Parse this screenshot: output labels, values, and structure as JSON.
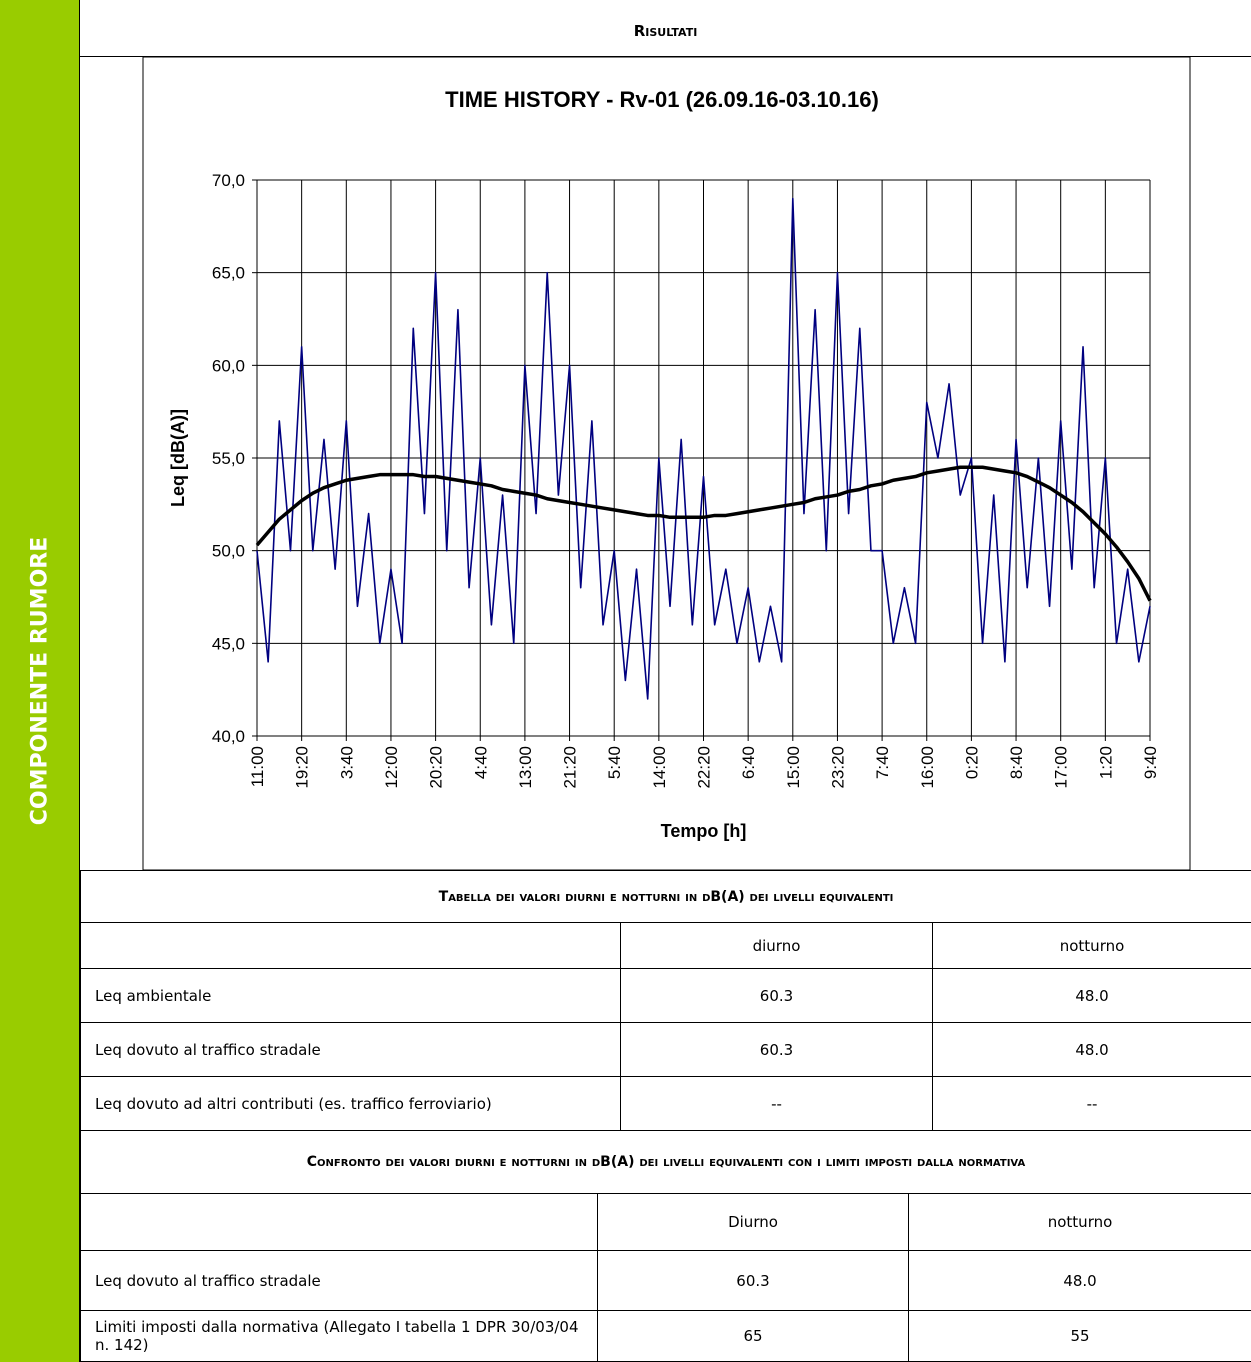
{
  "sidebar": "COMPONENTE RUMORE",
  "header": {
    "title": "Risultati"
  },
  "chart_data": {
    "type": "line",
    "title": "TIME HISTORY  - Rv-01 (26.09.16-03.10.16)",
    "x_label": "Tempo [h]",
    "y_label": "Leq [dB(A)]",
    "ylim": [
      40,
      70
    ],
    "yticks": [
      {
        "value": 40,
        "label": "40,0"
      },
      {
        "value": 45,
        "label": "45,0"
      },
      {
        "value": 50,
        "label": "50,0"
      },
      {
        "value": 55,
        "label": "55,0"
      },
      {
        "value": 60,
        "label": "60,0"
      },
      {
        "value": 65,
        "label": "65,0"
      },
      {
        "value": 70,
        "label": "70,0"
      }
    ],
    "grid": true,
    "categories": [
      "11:00",
      null,
      null,
      null,
      "19:20",
      null,
      null,
      null,
      "3:40",
      null,
      null,
      null,
      "12:00",
      null,
      null,
      null,
      "20:20",
      null,
      null,
      null,
      "4:40",
      null,
      null,
      null,
      "13:00",
      null,
      null,
      null,
      "21:20",
      null,
      null,
      null,
      "5:40",
      null,
      null,
      null,
      "14:00",
      null,
      null,
      null,
      "22:20",
      null,
      null,
      null,
      "6:40",
      null,
      null,
      null,
      "15:00",
      null,
      null,
      null,
      "23:20",
      null,
      null,
      null,
      "7:40",
      null,
      null,
      null,
      "16:00",
      null,
      null,
      null,
      "0:20",
      null,
      null,
      null,
      "8:40",
      null,
      null,
      null,
      "17:00",
      null,
      null,
      null,
      "1:20",
      null,
      null,
      null,
      "9:40"
    ],
    "series": [
      {
        "color": "#000080",
        "values": [
          50,
          44,
          57,
          50,
          61,
          50,
          56,
          49,
          57,
          47,
          52,
          45,
          49,
          45,
          62,
          52,
          65,
          50,
          63,
          48,
          55,
          46,
          53,
          45,
          60,
          52,
          65,
          53,
          60,
          48,
          57,
          46,
          50,
          43,
          49,
          42,
          55,
          47,
          56,
          46,
          54,
          46,
          49,
          45,
          48,
          44,
          47,
          44,
          69,
          52,
          63,
          50,
          65,
          52,
          62,
          50,
          50,
          45,
          48,
          45,
          58,
          55,
          59,
          53,
          55,
          45,
          53,
          44,
          56,
          48,
          55,
          47,
          57,
          49,
          61,
          48,
          55,
          45,
          49,
          44,
          47
        ]
      },
      {
        "color": "#000000",
        "values": [
          50.3,
          51.0,
          51.7,
          52.2,
          52.7,
          53.1,
          53.4,
          53.6,
          53.8,
          53.9,
          54.0,
          54.1,
          54.1,
          54.1,
          54.1,
          54.0,
          54.0,
          53.9,
          53.8,
          53.7,
          53.6,
          53.5,
          53.3,
          53.2,
          53.1,
          53.0,
          52.8,
          52.7,
          52.6,
          52.5,
          52.4,
          52.3,
          52.2,
          52.1,
          52.0,
          51.9,
          51.9,
          51.8,
          51.8,
          51.8,
          51.8,
          51.9,
          51.9,
          52.0,
          52.1,
          52.2,
          52.3,
          52.4,
          52.5,
          52.6,
          52.8,
          52.9,
          53.0,
          53.2,
          53.3,
          53.5,
          53.6,
          53.8,
          53.9,
          54.0,
          54.2,
          54.3,
          54.4,
          54.5,
          54.5,
          54.5,
          54.4,
          54.3,
          54.2,
          54.0,
          53.7,
          53.4,
          53.0,
          52.6,
          52.1,
          51.5,
          50.9,
          50.2,
          49.4,
          48.5,
          47.3
        ]
      }
    ]
  },
  "table1": {
    "title": "Tabella dei valori diurni e notturni in dB(A) dei livelli equivalenti",
    "columns": [
      "",
      "diurno",
      "notturno"
    ],
    "rows": [
      [
        "Leq ambientale",
        "60.3",
        "48.0"
      ],
      [
        "Leq dovuto al traffico stradale",
        "60.3",
        "48.0"
      ],
      [
        "Leq dovuto ad altri contributi (es. traffico ferroviario)",
        "--",
        "--"
      ]
    ]
  },
  "table2": {
    "title": "Confronto dei valori diurni e notturni in dB(A) dei livelli equivalenti con i limiti imposti dalla normativa",
    "columns": [
      "",
      "Diurno",
      "notturno"
    ],
    "rows": [
      [
        "Leq dovuto al traffico stradale",
        "60.3",
        "48.0"
      ],
      [
        "Limiti imposti dalla normativa (Allegato I tabella 1 DPR 30/03/04 n. 142)",
        "65",
        "55"
      ]
    ]
  }
}
